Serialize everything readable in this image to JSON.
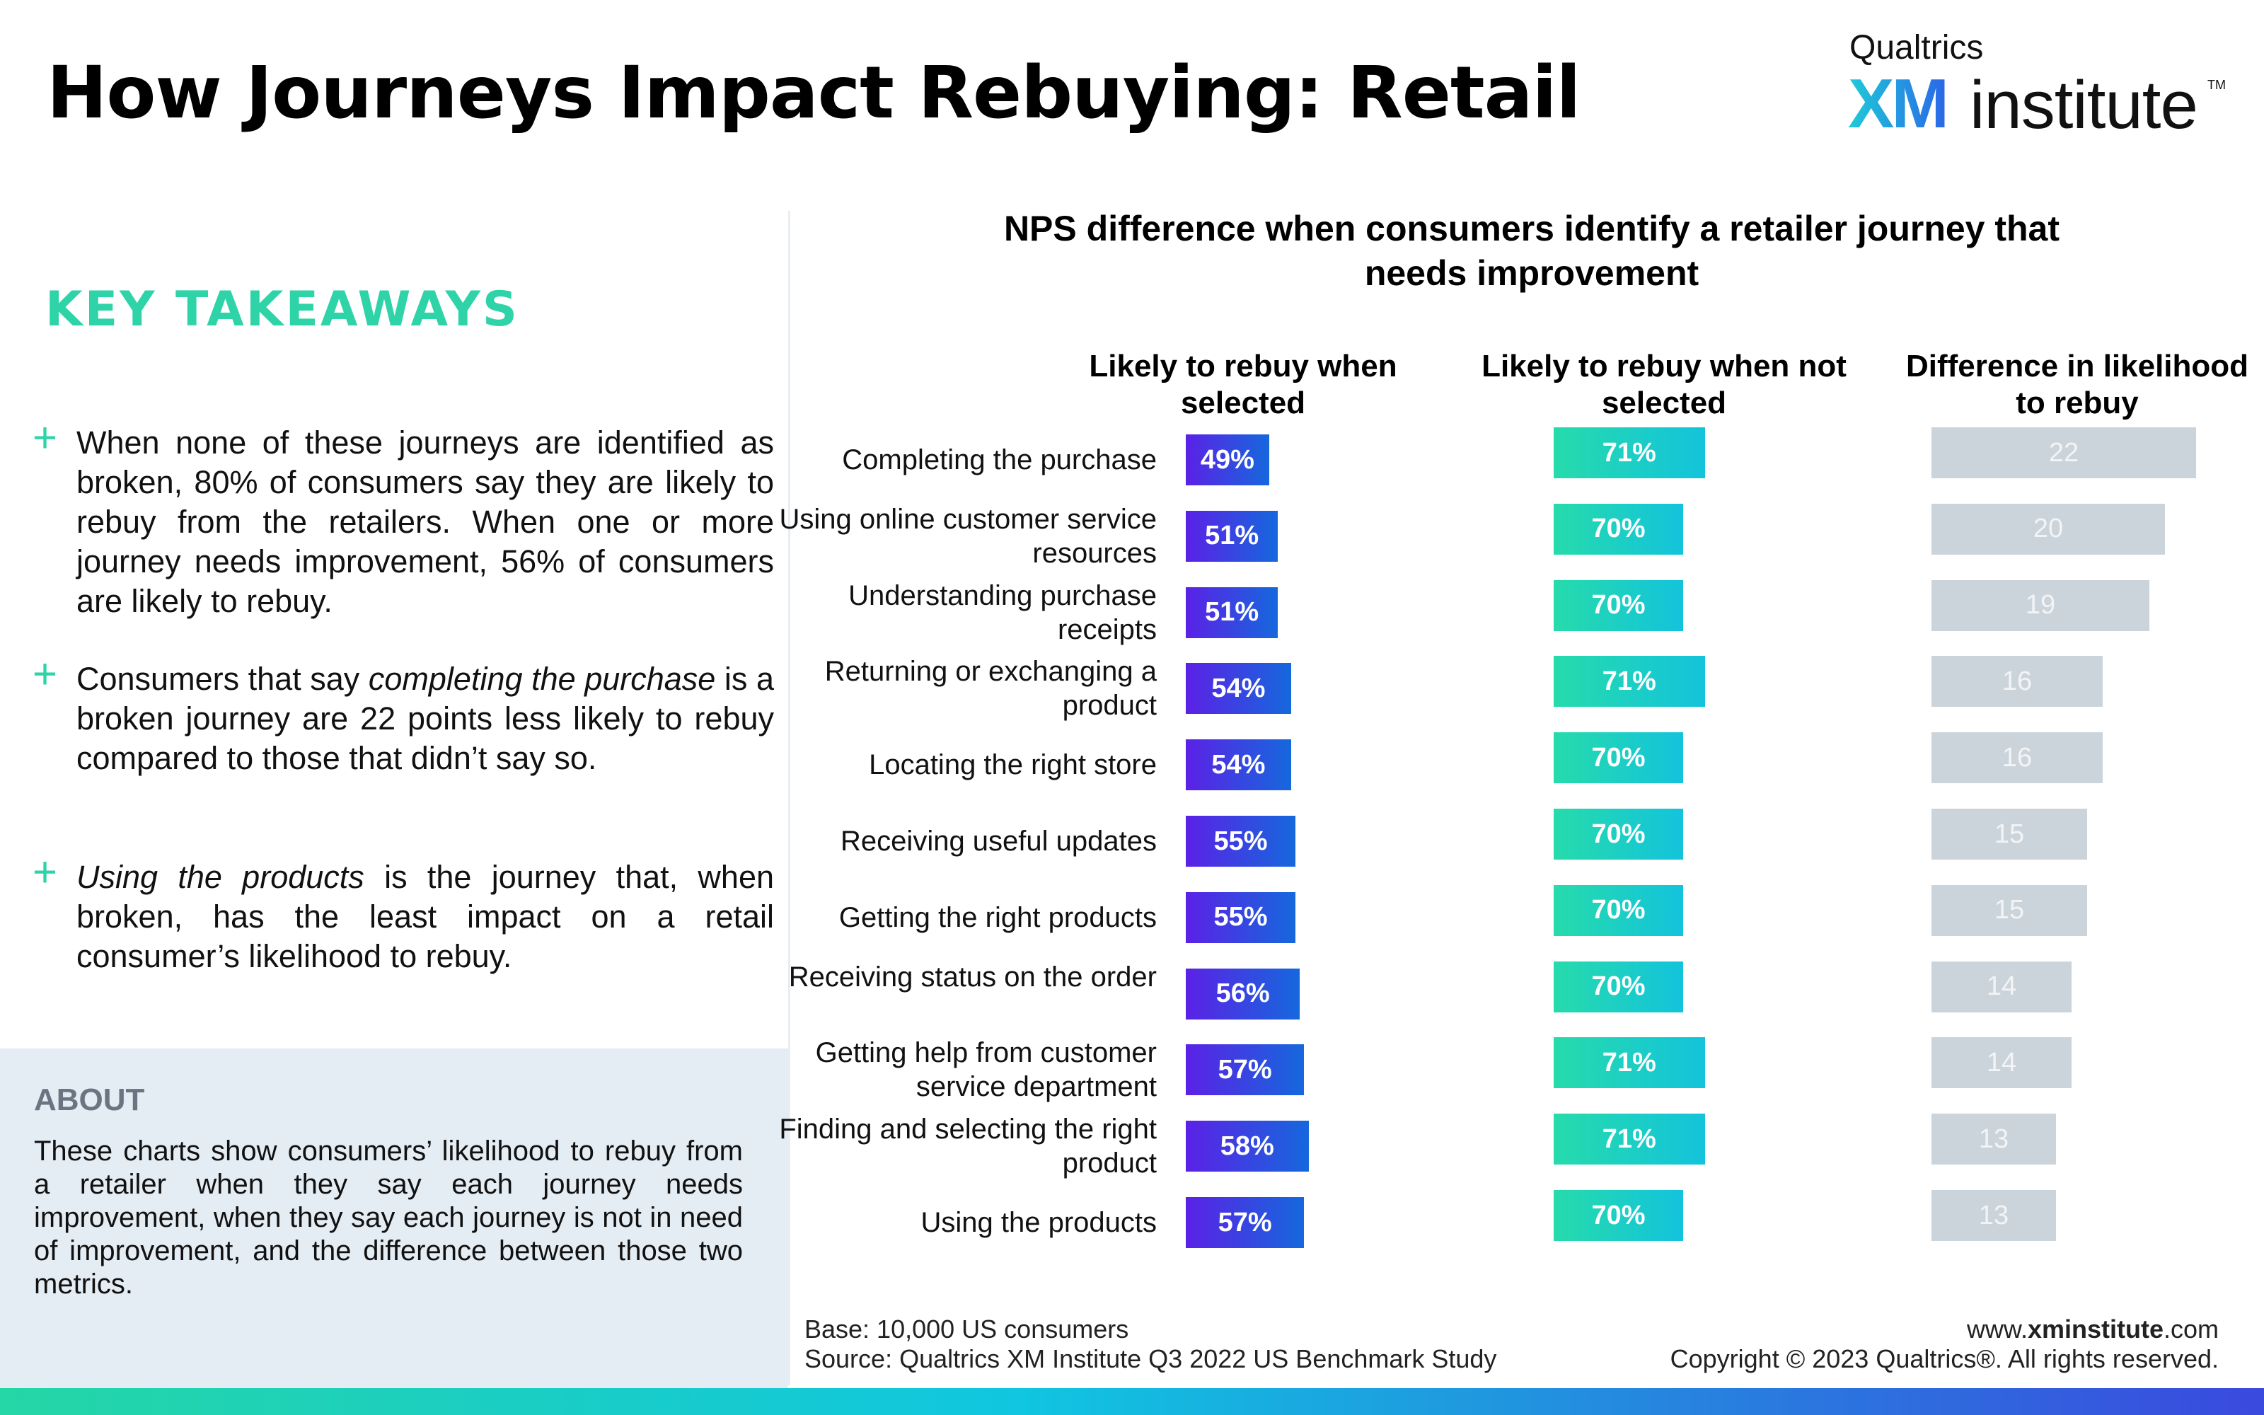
{
  "page": {
    "title": "How Journeys Impact Rebuying: Retail",
    "logo": {
      "top": "Qualtrics",
      "xm": "XM",
      "institute": "institute",
      "tm": "TM"
    },
    "colors": {
      "takeaway_accent": "#2ED3A8",
      "selected_bar_start": "#5B21E6",
      "selected_bar_end": "#1568DD",
      "not_selected_bar_start": "#26DBAB",
      "not_selected_bar_end": "#13C3DC",
      "difference_bar": "#CCD4DB",
      "about_background": "#E4ECF4"
    }
  },
  "takeaways": {
    "heading": "KEY TAKEAWAYS",
    "items": [
      {
        "segments": [
          {
            "text": "When none of these journeys are identified as broken, 80% of consumers say they are likely to rebuy from the retailers. When one or more journey needs improvement, 56% of consumers are likely to rebuy.",
            "italic": false
          }
        ]
      },
      {
        "segments": [
          {
            "text": "Consumers that say ",
            "italic": false
          },
          {
            "text": "completing the purchase",
            "italic": true
          },
          {
            "text": " is a broken journey are 22 points less likely to rebuy compared to those that didn’t say so.",
            "italic": false
          }
        ]
      },
      {
        "segments": [
          {
            "text": "Using the products",
            "italic": true
          },
          {
            "text": " is the journey that, when broken, has the least impact on a retail consumer’s likelihood to rebuy.",
            "italic": false
          }
        ]
      }
    ]
  },
  "about": {
    "heading": "ABOUT",
    "text": "These charts show consumers’ likelihood to rebuy from a retailer when they say each journey needs improvement, when they say each journey is not in need of improvement, and the difference between those two metrics."
  },
  "chart_data": {
    "type": "bar",
    "orientation": "horizontal",
    "title": "NPS difference when consumers identify a retailer journey that needs improvement",
    "categories": [
      "Completing the purchase",
      "Using online customer service resources",
      "Understanding purchase receipts",
      "Returning or exchanging a product",
      "Locating the right store",
      "Receiving useful updates",
      "Getting the right products",
      "Receiving status on the order",
      "Getting help from customer service department",
      "Finding and selecting the right product",
      "Using the products"
    ],
    "series": [
      {
        "name": "Likely to rebuy when selected",
        "values": [
          49,
          51,
          51,
          54,
          54,
          55,
          55,
          56,
          57,
          58,
          57
        ],
        "labels": [
          "49%",
          "51%",
          "51%",
          "54%",
          "54%",
          "55%",
          "55%",
          "56%",
          "57%",
          "58%",
          "57%"
        ]
      },
      {
        "name": "Likely to rebuy when not selected",
        "values": [
          71,
          70,
          70,
          71,
          70,
          70,
          70,
          70,
          71,
          71,
          70
        ],
        "labels": [
          "71%",
          "70%",
          "70%",
          "71%",
          "70%",
          "70%",
          "70%",
          "70%",
          "71%",
          "71%",
          "70%"
        ]
      },
      {
        "name": "Difference in likelihood to rebuy",
        "values": [
          22,
          20,
          19,
          16,
          16,
          15,
          15,
          14,
          14,
          13,
          13
        ],
        "labels": [
          "22",
          "20",
          "19",
          "16",
          "16",
          "15",
          "15",
          "14",
          "14",
          "13",
          "13"
        ]
      }
    ],
    "column_headers": [
      "Likely to rebuy when selected",
      "Likely to rebuy when not selected",
      "Difference in likelihood to rebuy"
    ],
    "grid": false,
    "legend": "none"
  },
  "footer": {
    "base": "Base: 10,000 US consumers",
    "source": "Source: Qualtrics XM Institute Q3 2022 US Benchmark Study",
    "url_prefix": "www.",
    "url_bold": "xminstitute",
    "url_suffix": ".com",
    "copyright": "Copyright © 2023 Qualtrics®. All rights reserved."
  }
}
